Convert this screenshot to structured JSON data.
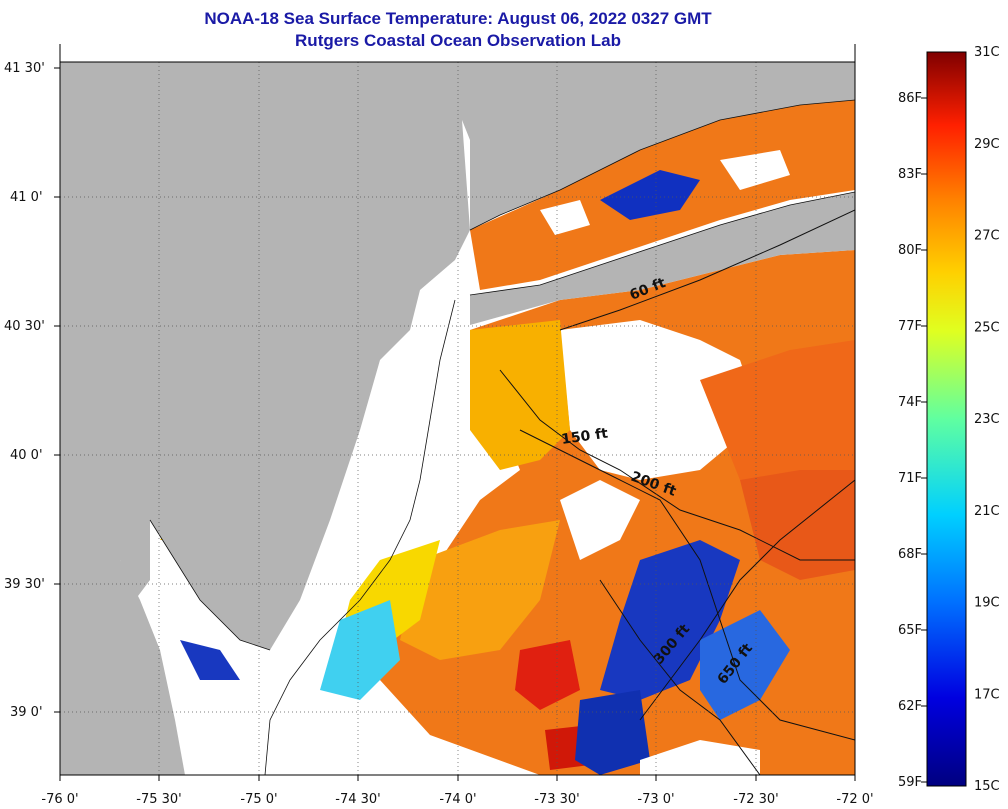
{
  "title": {
    "line1": "NOAA-18 Sea Surface Temperature:  August 06, 2022 0327 GMT",
    "line2": "Rutgers Coastal Ocean Observation Lab"
  },
  "axes": {
    "x_ticks": [
      "-76 0'",
      "-75 30'",
      "-75 0'",
      "-74 30'",
      "-74 0'",
      "-73 30'",
      "-73 0'",
      "-72 30'",
      "-72 0'"
    ],
    "y_ticks": [
      "41 30'",
      "41 0'",
      "40 30'",
      "40 0'",
      "39 30'",
      "39 0'"
    ]
  },
  "contours": [
    {
      "label": "60 ft"
    },
    {
      "label": "150 ft"
    },
    {
      "label": "200 ft"
    },
    {
      "label": "300 ft"
    },
    {
      "label": "650 ft"
    }
  ],
  "colorbar": {
    "celsius": [
      "31C",
      "29C",
      "27C",
      "25C",
      "23C",
      "21C",
      "19C",
      "17C",
      "15C"
    ],
    "fahrenheit": [
      "86F",
      "83F",
      "80F",
      "77F",
      "74F",
      "71F",
      "68F",
      "65F",
      "62F",
      "59F"
    ],
    "range_c": [
      15,
      31
    ]
  },
  "colors": {
    "land": "#b4b4b4",
    "cloud": "#ffffff",
    "title": "#1a1aa6",
    "warm": "#f07818",
    "hot": "#e02010",
    "mid": "#f8c800",
    "cool": "#10c8e8",
    "cold": "#1030c0"
  }
}
